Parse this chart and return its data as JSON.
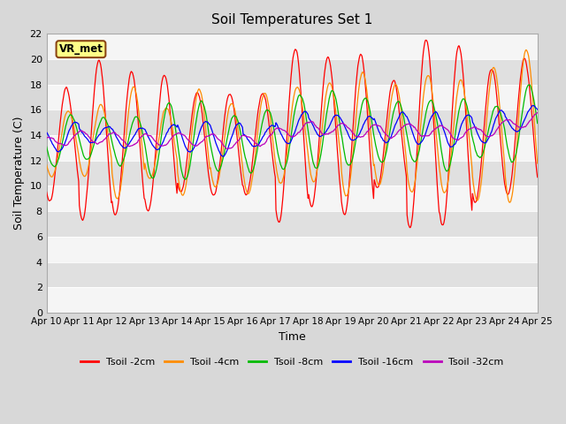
{
  "title": "Soil Temperatures Set 1",
  "xlabel": "Time",
  "ylabel": "Soil Temperature (C)",
  "ylim": [
    0,
    22
  ],
  "yticks": [
    0,
    2,
    4,
    6,
    8,
    10,
    12,
    14,
    16,
    18,
    20,
    22
  ],
  "fig_bg_color": "#d8d8d8",
  "plot_bg_color_light": "#f5f5f5",
  "plot_bg_color_dark": "#e0e0e0",
  "annotation_text": "VR_met",
  "annotation_box_color": "#ffff88",
  "annotation_border_color": "#8b4513",
  "series_colors": [
    "#ff0000",
    "#ff8c00",
    "#00bb00",
    "#0000ff",
    "#bb00bb"
  ],
  "series_labels": [
    "Tsoil -2cm",
    "Tsoil -4cm",
    "Tsoil -8cm",
    "Tsoil -16cm",
    "Tsoil -32cm"
  ],
  "start_day": 10,
  "n_days": 15,
  "samples_per_day": 48
}
